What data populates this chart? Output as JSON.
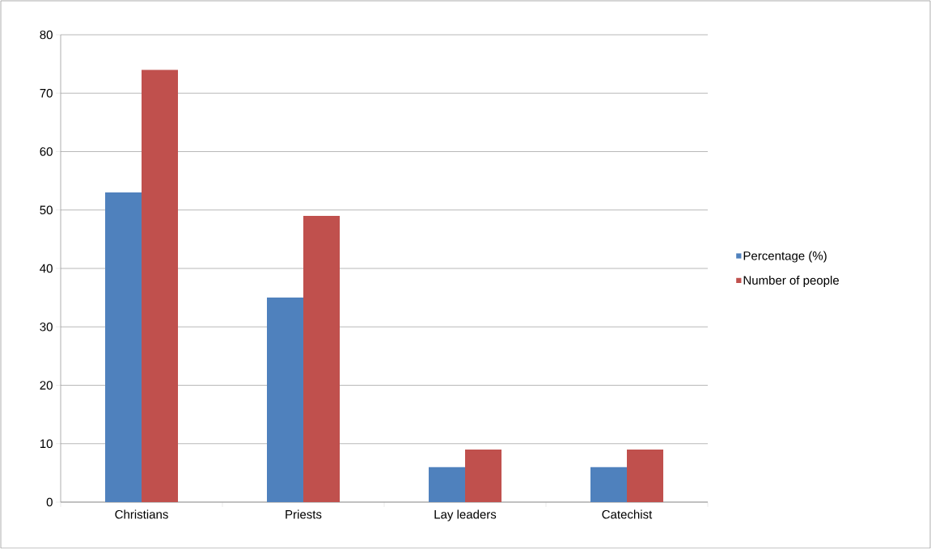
{
  "chart_data": {
    "type": "bar",
    "categories": [
      "Christians",
      "Priests",
      "Lay leaders",
      "Catechist"
    ],
    "series": [
      {
        "name": "Percentage (%)",
        "color": "#4f81bd",
        "values": [
          53,
          35,
          6,
          6
        ]
      },
      {
        "name": "Number of people",
        "color": "#c0504d",
        "values": [
          74,
          49,
          9,
          9
        ]
      }
    ],
    "ylim": [
      0,
      80
    ],
    "yticks": [
      0,
      10,
      20,
      30,
      40,
      50,
      60,
      70,
      80
    ],
    "grid": "y",
    "legend": "right"
  }
}
